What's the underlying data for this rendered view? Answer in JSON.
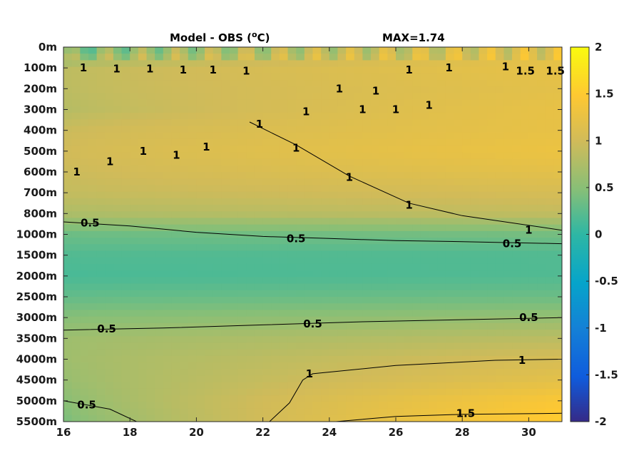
{
  "chart_data": {
    "type": "heatmap",
    "title": "Model - OBS (",
    "title_sup": "o",
    "title_tail": "C)",
    "max_label": "MAX=1.74",
    "xlim": [
      16,
      31
    ],
    "x_ticks": [
      "16",
      "18",
      "20",
      "22",
      "24",
      "26",
      "28",
      "30"
    ],
    "x_tick_values": [
      16,
      18,
      20,
      22,
      24,
      26,
      28,
      30
    ],
    "y_ticks": [
      "0m",
      "100m",
      "200m",
      "300m",
      "400m",
      "500m",
      "600m",
      "700m",
      "800m",
      "1000m",
      "1500m",
      "2000m",
      "2500m",
      "3000m",
      "3500m",
      "4000m",
      "4500m",
      "5000m",
      "5500m"
    ],
    "colorbar": {
      "ticks": [
        "2",
        "1.5",
        "1",
        "0.5",
        "0",
        "-0.5",
        "-1",
        "-1.5",
        "-2"
      ],
      "tick_values": [
        2,
        1.5,
        1,
        0.5,
        0,
        -0.5,
        -1,
        -1.5,
        -2
      ],
      "clim": [
        -2,
        2
      ],
      "colormap": "parula"
    },
    "contour_levels": [
      0.5,
      1,
      1.5
    ],
    "contour_labels": [
      {
        "text": "0.5",
        "x": 16.8,
        "depth_index": 8.45
      },
      {
        "text": "0.5",
        "x": 23.0,
        "depth_index": 9.2
      },
      {
        "text": "0.5",
        "x": 29.5,
        "depth_index": 9.45
      },
      {
        "text": "0.5",
        "x": 17.3,
        "depth_index": 13.55
      },
      {
        "text": "0.5",
        "x": 23.5,
        "depth_index": 13.3
      },
      {
        "text": "0.5",
        "x": 30.0,
        "depth_index": 13.0
      },
      {
        "text": "1",
        "x": 23.4,
        "depth_index": 15.7
      },
      {
        "text": "1",
        "x": 29.8,
        "depth_index": 15.05
      },
      {
        "text": "1.5",
        "x": 28.1,
        "depth_index": 17.6
      },
      {
        "text": "0.5",
        "x": 16.7,
        "depth_index": 17.2
      },
      {
        "text": "1",
        "x": 30.0,
        "depth_index": 8.8
      },
      {
        "text": "1",
        "x": 26.4,
        "depth_index": 7.6
      },
      {
        "text": "1",
        "x": 24.6,
        "depth_index": 6.25
      },
      {
        "text": "1",
        "x": 23.0,
        "depth_index": 4.85
      },
      {
        "text": "1",
        "x": 21.9,
        "depth_index": 3.7
      },
      {
        "text": "1",
        "x": 23.3,
        "depth_index": 3.1
      },
      {
        "text": "1",
        "x": 16.4,
        "depth_index": 6.0
      },
      {
        "text": "1",
        "x": 17.4,
        "depth_index": 5.5
      },
      {
        "text": "1",
        "x": 18.4,
        "depth_index": 5.0
      },
      {
        "text": "1",
        "x": 19.4,
        "depth_index": 5.2
      },
      {
        "text": "1",
        "x": 20.3,
        "depth_index": 4.8
      },
      {
        "text": "1",
        "x": 16.6,
        "depth_index": 1.0
      },
      {
        "text": "1",
        "x": 17.6,
        "depth_index": 1.05
      },
      {
        "text": "1",
        "x": 18.6,
        "depth_index": 1.05
      },
      {
        "text": "1",
        "x": 19.6,
        "depth_index": 1.1
      },
      {
        "text": "1",
        "x": 20.5,
        "depth_index": 1.1
      },
      {
        "text": "1",
        "x": 21.5,
        "depth_index": 1.15
      },
      {
        "text": "1",
        "x": 24.3,
        "depth_index": 2.0
      },
      {
        "text": "1",
        "x": 25.4,
        "depth_index": 2.1
      },
      {
        "text": "1",
        "x": 25.0,
        "depth_index": 3.0
      },
      {
        "text": "1",
        "x": 26.0,
        "depth_index": 3.0
      },
      {
        "text": "1",
        "x": 27.0,
        "depth_index": 2.8
      },
      {
        "text": "1",
        "x": 26.4,
        "depth_index": 1.1
      },
      {
        "text": "1",
        "x": 27.6,
        "depth_index": 1.0
      },
      {
        "text": "1",
        "x": 29.3,
        "depth_index": 0.95
      },
      {
        "text": "1.5",
        "x": 29.9,
        "depth_index": 1.15
      },
      {
        "text": "1.5",
        "x": 30.8,
        "depth_index": 1.15
      }
    ],
    "field_profile": [
      {
        "depth_index": 0,
        "west": 0.3,
        "east": 1.15
      },
      {
        "depth_index": 1,
        "west": 0.85,
        "east": 1.25
      },
      {
        "depth_index": 2,
        "west": 0.85,
        "east": 1.2
      },
      {
        "depth_index": 3,
        "west": 0.8,
        "east": 1.25
      },
      {
        "depth_index": 4,
        "west": 0.95,
        "east": 1.25
      },
      {
        "depth_index": 5,
        "west": 1.0,
        "east": 1.3
      },
      {
        "depth_index": 6,
        "west": 0.95,
        "east": 1.2
      },
      {
        "depth_index": 7,
        "west": 0.9,
        "east": 1.05
      },
      {
        "depth_index": 8,
        "west": 0.75,
        "east": 0.9
      },
      {
        "depth_index": 9,
        "west": 0.35,
        "east": 0.4
      },
      {
        "depth_index": 10,
        "west": 0.2,
        "east": 0.2
      },
      {
        "depth_index": 11,
        "west": 0.15,
        "east": 0.2
      },
      {
        "depth_index": 12,
        "west": 0.3,
        "east": 0.35
      },
      {
        "depth_index": 13,
        "west": 0.5,
        "east": 0.6
      },
      {
        "depth_index": 14,
        "west": 0.65,
        "east": 0.85
      },
      {
        "depth_index": 15,
        "west": 0.65,
        "east": 1.05
      },
      {
        "depth_index": 16,
        "west": 0.6,
        "east": 1.2
      },
      {
        "depth_index": 17,
        "west": 0.5,
        "east": 1.45
      },
      {
        "depth_index": 18,
        "west": 0.4,
        "east": 1.55
      }
    ]
  }
}
